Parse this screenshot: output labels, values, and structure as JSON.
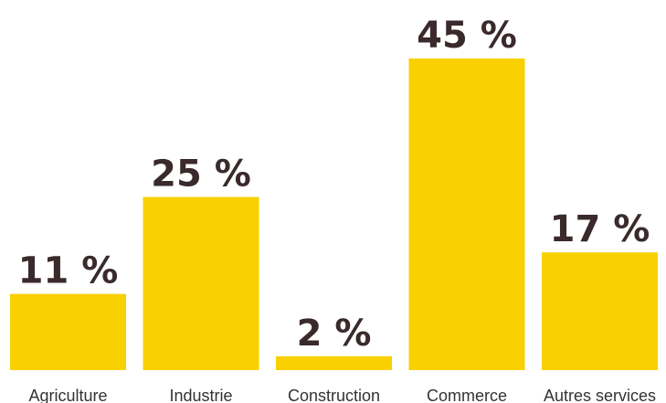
{
  "chart_data": {
    "type": "bar",
    "categories": [
      "Agriculture",
      "Industrie",
      "Construction",
      "Commerce",
      "Autres services"
    ],
    "values": [
      11,
      25,
      2,
      45,
      17
    ],
    "data_labels": [
      "11 %",
      "25 %",
      "2 %",
      "45 %",
      "17 %"
    ],
    "ylim": [
      0,
      45
    ],
    "grid": false,
    "legend": "none",
    "bar_color": "#f9d000",
    "label_color": "#3a2a2c"
  }
}
